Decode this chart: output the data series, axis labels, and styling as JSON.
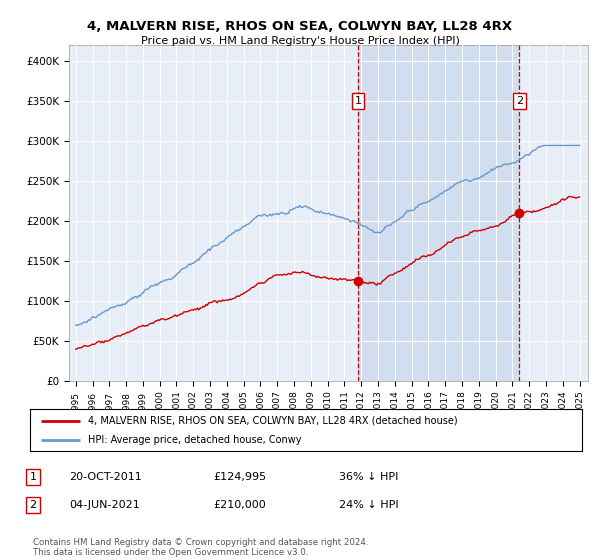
{
  "title": "4, MALVERN RISE, RHOS ON SEA, COLWYN BAY, LL28 4RX",
  "subtitle": "Price paid vs. HM Land Registry's House Price Index (HPI)",
  "plot_bg_color": "#e8eef8",
  "hpi_color": "#6699cc",
  "price_color": "#cc0000",
  "vline_color": "#cc0000",
  "shade_color": "#c8d8ee",
  "ylim": [
    0,
    420000
  ],
  "yticks": [
    0,
    50000,
    100000,
    150000,
    200000,
    250000,
    300000,
    350000,
    400000
  ],
  "ytick_labels": [
    "£0",
    "£50K",
    "£100K",
    "£150K",
    "£200K",
    "£250K",
    "£300K",
    "£350K",
    "£400K"
  ],
  "sale1_date": 2011.8,
  "sale1_price": 124995,
  "sale1_label": "1",
  "sale2_date": 2021.42,
  "sale2_price": 210000,
  "sale2_label": "2",
  "legend_line1": "4, MALVERN RISE, RHOS ON SEA, COLWYN BAY, LL28 4RX (detached house)",
  "legend_line2": "HPI: Average price, detached house, Conwy",
  "note1_num": "1",
  "note1_date": "20-OCT-2011",
  "note1_price": "£124,995",
  "note1_pct": "36% ↓ HPI",
  "note2_num": "2",
  "note2_date": "04-JUN-2021",
  "note2_price": "£210,000",
  "note2_pct": "24% ↓ HPI",
  "footer": "Contains HM Land Registry data © Crown copyright and database right 2024.\nThis data is licensed under the Open Government Licence v3.0."
}
